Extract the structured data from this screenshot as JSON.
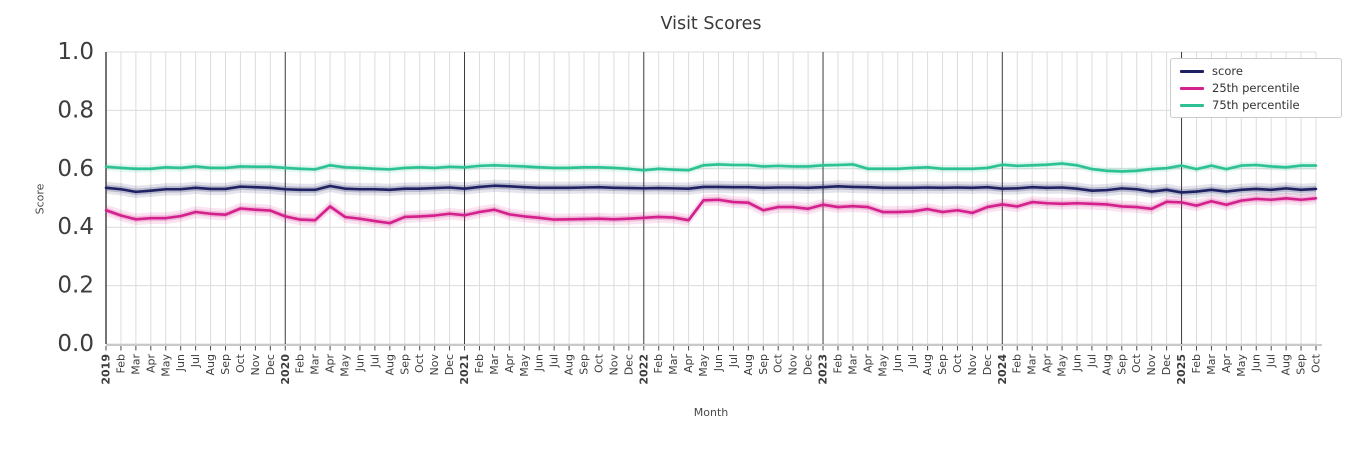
{
  "chart_data": {
    "type": "line",
    "title": "Visit Scores",
    "xlabel": "Month",
    "ylabel": "Score",
    "ylim": [
      0.0,
      1.0
    ],
    "yticks": [
      0.0,
      0.2,
      0.4,
      0.6,
      0.8,
      1.0
    ],
    "grid": true,
    "legend_position": "upper right",
    "style": {
      "grid_color": "#dcdcdc",
      "year_line_color": "#3a3a3a",
      "left_spine_color": "#3a3a3a",
      "bottom_spine_color": "#c9c9c9",
      "tick_color": "#4a4a4a",
      "tick_label_color": "#3d3d3d",
      "band_inner_opacity": 0.22,
      "band_outer_opacity": 0.12
    },
    "x": [
      "2019",
      "Feb",
      "Mar",
      "Apr",
      "May",
      "Jun",
      "Jul",
      "Aug",
      "Sep",
      "Oct",
      "Nov",
      "Dec",
      "2020",
      "Feb",
      "Mar",
      "Apr",
      "May",
      "Jun",
      "Jul",
      "Aug",
      "Sep",
      "Oct",
      "Nov",
      "Dec",
      "2021",
      "Feb",
      "Mar",
      "Apr",
      "May",
      "Jun",
      "Jul",
      "Aug",
      "Sep",
      "Oct",
      "Nov",
      "Dec",
      "2022",
      "Feb",
      "Mar",
      "Apr",
      "May",
      "Jun",
      "Jul",
      "Aug",
      "Sep",
      "Oct",
      "Nov",
      "Dec",
      "2023",
      "Feb",
      "Mar",
      "Apr",
      "May",
      "Jun",
      "Jul",
      "Aug",
      "Sep",
      "Oct",
      "Nov",
      "Dec",
      "2024",
      "Feb",
      "Mar",
      "Apr",
      "May",
      "Jun",
      "Jul",
      "Aug",
      "Sep",
      "Oct",
      "Nov",
      "Dec",
      "2025",
      "Feb",
      "Mar",
      "Apr",
      "May",
      "Jun",
      "Jul",
      "Aug",
      "Sep",
      "Oct"
    ],
    "series": [
      {
        "name": "score",
        "color": "#1e2263",
        "band_inner": 0.011,
        "band_outer": 0.021,
        "values": [
          0.535,
          0.53,
          0.521,
          0.525,
          0.53,
          0.53,
          0.535,
          0.531,
          0.531,
          0.539,
          0.537,
          0.535,
          0.53,
          0.528,
          0.528,
          0.541,
          0.532,
          0.53,
          0.53,
          0.528,
          0.532,
          0.532,
          0.534,
          0.536,
          0.532,
          0.538,
          0.542,
          0.54,
          0.537,
          0.535,
          0.535,
          0.535,
          0.536,
          0.537,
          0.535,
          0.534,
          0.533,
          0.534,
          0.533,
          0.532,
          0.538,
          0.538,
          0.537,
          0.537,
          0.535,
          0.536,
          0.536,
          0.535,
          0.537,
          0.54,
          0.538,
          0.537,
          0.535,
          0.535,
          0.535,
          0.536,
          0.535,
          0.536,
          0.535,
          0.537,
          0.532,
          0.533,
          0.537,
          0.535,
          0.536,
          0.532,
          0.525,
          0.527,
          0.533,
          0.53,
          0.522,
          0.528,
          0.519,
          0.522,
          0.528,
          0.522,
          0.528,
          0.531,
          0.528,
          0.533,
          0.528,
          0.531
        ]
      },
      {
        "name": "25th percentile",
        "color": "#d4208c",
        "band_inner": 0.01,
        "band_outer": 0.02,
        "values": [
          0.458,
          0.44,
          0.427,
          0.431,
          0.431,
          0.438,
          0.452,
          0.446,
          0.443,
          0.464,
          0.46,
          0.457,
          0.437,
          0.426,
          0.424,
          0.471,
          0.435,
          0.429,
          0.421,
          0.414,
          0.435,
          0.437,
          0.44,
          0.446,
          0.441,
          0.452,
          0.46,
          0.444,
          0.437,
          0.432,
          0.426,
          0.427,
          0.428,
          0.429,
          0.427,
          0.429,
          0.432,
          0.435,
          0.433,
          0.424,
          0.492,
          0.494,
          0.486,
          0.484,
          0.458,
          0.469,
          0.469,
          0.463,
          0.477,
          0.469,
          0.472,
          0.469,
          0.452,
          0.452,
          0.454,
          0.462,
          0.452,
          0.458,
          0.449,
          0.469,
          0.478,
          0.471,
          0.486,
          0.482,
          0.48,
          0.482,
          0.48,
          0.478,
          0.471,
          0.469,
          0.463,
          0.487,
          0.485,
          0.474,
          0.489,
          0.477,
          0.491,
          0.497,
          0.494,
          0.499,
          0.494,
          0.499
        ]
      },
      {
        "name": "75th percentile",
        "color": "#2dc294",
        "band_inner": 0.006,
        "band_outer": 0.013,
        "values": [
          0.607,
          0.603,
          0.6,
          0.6,
          0.605,
          0.603,
          0.608,
          0.603,
          0.603,
          0.608,
          0.607,
          0.607,
          0.603,
          0.6,
          0.598,
          0.612,
          0.605,
          0.603,
          0.6,
          0.598,
          0.603,
          0.605,
          0.603,
          0.607,
          0.605,
          0.61,
          0.612,
          0.61,
          0.608,
          0.605,
          0.603,
          0.603,
          0.605,
          0.605,
          0.603,
          0.6,
          0.595,
          0.6,
          0.597,
          0.595,
          0.612,
          0.615,
          0.613,
          0.613,
          0.608,
          0.61,
          0.608,
          0.608,
          0.612,
          0.613,
          0.615,
          0.6,
          0.6,
          0.6,
          0.603,
          0.605,
          0.6,
          0.6,
          0.6,
          0.603,
          0.614,
          0.61,
          0.612,
          0.614,
          0.618,
          0.612,
          0.599,
          0.593,
          0.591,
          0.593,
          0.599,
          0.602,
          0.611,
          0.599,
          0.611,
          0.599,
          0.611,
          0.613,
          0.608,
          0.605,
          0.611,
          0.611
        ]
      }
    ]
  }
}
